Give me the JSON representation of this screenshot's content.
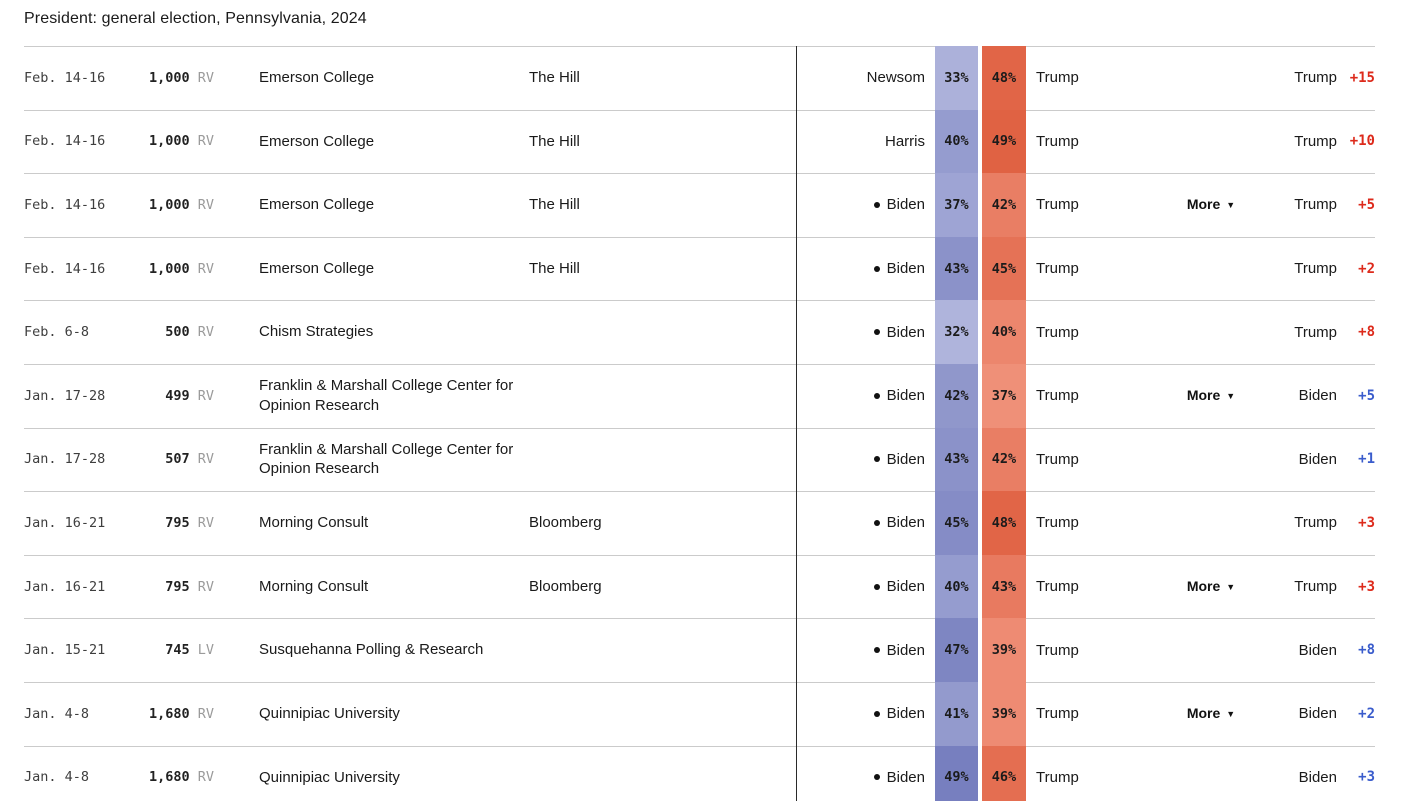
{
  "title": "President: general election, Pennsylvania, 2024",
  "ui": {
    "more_label": "More",
    "more_chevron": "▼"
  },
  "colors": {
    "rep_lead": "#dd2a1b",
    "dem_lead": "#3a5ccc",
    "divider": "#2a2a2a",
    "separator": "#cbcbcb"
  },
  "table": {
    "rows": [
      {
        "date": "Feb. 14-16",
        "sample": "1,000",
        "sample_suffix": " RV",
        "pollster": "Emerson College",
        "sponsor": "The Hill",
        "dem_name": "Newsom",
        "dem_incumbent": false,
        "dem_pct": "33%",
        "dem_color": "#acb1da",
        "rep_pct": "48%",
        "rep_color": "#e16547",
        "rep_name": "Trump",
        "more": false,
        "leader": "Trump",
        "margin": "+15",
        "leader_party": "rep"
      },
      {
        "date": "Feb. 14-16",
        "sample": "1,000",
        "sample_suffix": " RV",
        "pollster": "Emerson College",
        "sponsor": "The Hill",
        "dem_name": "Harris",
        "dem_incumbent": false,
        "dem_pct": "40%",
        "dem_color": "#959ccf",
        "rep_pct": "49%",
        "rep_color": "#e06243",
        "rep_name": "Trump",
        "more": false,
        "leader": "Trump",
        "margin": "+10",
        "leader_party": "rep"
      },
      {
        "date": "Feb. 14-16",
        "sample": "1,000",
        "sample_suffix": " RV",
        "pollster": "Emerson College",
        "sponsor": "The Hill",
        "dem_name": "Biden",
        "dem_incumbent": true,
        "dem_pct": "37%",
        "dem_color": "#9ea4d4",
        "rep_pct": "42%",
        "rep_color": "#e97e64",
        "rep_name": "Trump",
        "more": true,
        "leader": "Trump",
        "margin": "+5",
        "leader_party": "rep"
      },
      {
        "date": "Feb. 14-16",
        "sample": "1,000",
        "sample_suffix": " RV",
        "pollster": "Emerson College",
        "sponsor": "The Hill",
        "dem_name": "Biden",
        "dem_incumbent": true,
        "dem_pct": "43%",
        "dem_color": "#8b92c9",
        "rep_pct": "45%",
        "rep_color": "#e57256",
        "rep_name": "Trump",
        "more": false,
        "leader": "Trump",
        "margin": "+2",
        "leader_party": "rep"
      },
      {
        "date": "Feb. 6-8",
        "sample": "500",
        "sample_suffix": " RV",
        "pollster": "Chism Strategies",
        "sponsor": "",
        "dem_name": "Biden",
        "dem_incumbent": true,
        "dem_pct": "32%",
        "dem_color": "#afb4dc",
        "rep_pct": "40%",
        "rep_color": "#ec866d",
        "rep_name": "Trump",
        "more": false,
        "leader": "Trump",
        "margin": "+8",
        "leader_party": "rep"
      },
      {
        "date": "Jan. 17-28",
        "sample": "499",
        "sample_suffix": " RV",
        "pollster": "Franklin & Marshall College Center for Opinion Research",
        "sponsor": "",
        "dem_name": "Biden",
        "dem_incumbent": true,
        "dem_pct": "42%",
        "dem_color": "#9097cb",
        "rep_pct": "37%",
        "rep_color": "#ef9078",
        "rep_name": "Trump",
        "more": true,
        "leader": "Biden",
        "margin": "+5",
        "leader_party": "dem"
      },
      {
        "date": "Jan. 17-28",
        "sample": "507",
        "sample_suffix": " RV",
        "pollster": "Franklin & Marshall College Center for Opinion Research",
        "sponsor": "",
        "dem_name": "Biden",
        "dem_incumbent": true,
        "dem_pct": "43%",
        "dem_color": "#8b92c9",
        "rep_pct": "42%",
        "rep_color": "#e97e64",
        "rep_name": "Trump",
        "more": false,
        "leader": "Biden",
        "margin": "+1",
        "leader_party": "dem"
      },
      {
        "date": "Jan. 16-21",
        "sample": "795",
        "sample_suffix": " RV",
        "pollster": "Morning Consult",
        "sponsor": "Bloomberg",
        "dem_name": "Biden",
        "dem_incumbent": true,
        "dem_pct": "45%",
        "dem_color": "#858cc6",
        "rep_pct": "48%",
        "rep_color": "#e16547",
        "rep_name": "Trump",
        "more": false,
        "leader": "Trump",
        "margin": "+3",
        "leader_party": "rep"
      },
      {
        "date": "Jan. 16-21",
        "sample": "795",
        "sample_suffix": " RV",
        "pollster": "Morning Consult",
        "sponsor": "Bloomberg",
        "dem_name": "Biden",
        "dem_incumbent": true,
        "dem_pct": "40%",
        "dem_color": "#959ccf",
        "rep_pct": "43%",
        "rep_color": "#e87a60",
        "rep_name": "Trump",
        "more": true,
        "leader": "Trump",
        "margin": "+3",
        "leader_party": "rep"
      },
      {
        "date": "Jan. 15-21",
        "sample": "745",
        "sample_suffix": " LV",
        "pollster": "Susquehanna Polling & Research",
        "sponsor": "",
        "dem_name": "Biden",
        "dem_incumbent": true,
        "dem_pct": "47%",
        "dem_color": "#7e86c2",
        "rep_pct": "39%",
        "rep_color": "#ee8b73",
        "rep_name": "Trump",
        "more": false,
        "leader": "Biden",
        "margin": "+8",
        "leader_party": "dem"
      },
      {
        "date": "Jan. 4-8",
        "sample": "1,680",
        "sample_suffix": " RV",
        "pollster": "Quinnipiac University",
        "sponsor": "",
        "dem_name": "Biden",
        "dem_incumbent": true,
        "dem_pct": "41%",
        "dem_color": "#939acd",
        "rep_pct": "39%",
        "rep_color": "#ee8b73",
        "rep_name": "Trump",
        "more": true,
        "leader": "Biden",
        "margin": "+2",
        "leader_party": "dem"
      },
      {
        "date": "Jan. 4-8",
        "sample": "1,680",
        "sample_suffix": " RV",
        "pollster": "Quinnipiac University",
        "sponsor": "",
        "dem_name": "Biden",
        "dem_incumbent": true,
        "dem_pct": "49%",
        "dem_color": "#777fbf",
        "rep_pct": "46%",
        "rep_color": "#e46e51",
        "rep_name": "Trump",
        "more": false,
        "leader": "Biden",
        "margin": "+3",
        "leader_party": "dem"
      }
    ]
  }
}
